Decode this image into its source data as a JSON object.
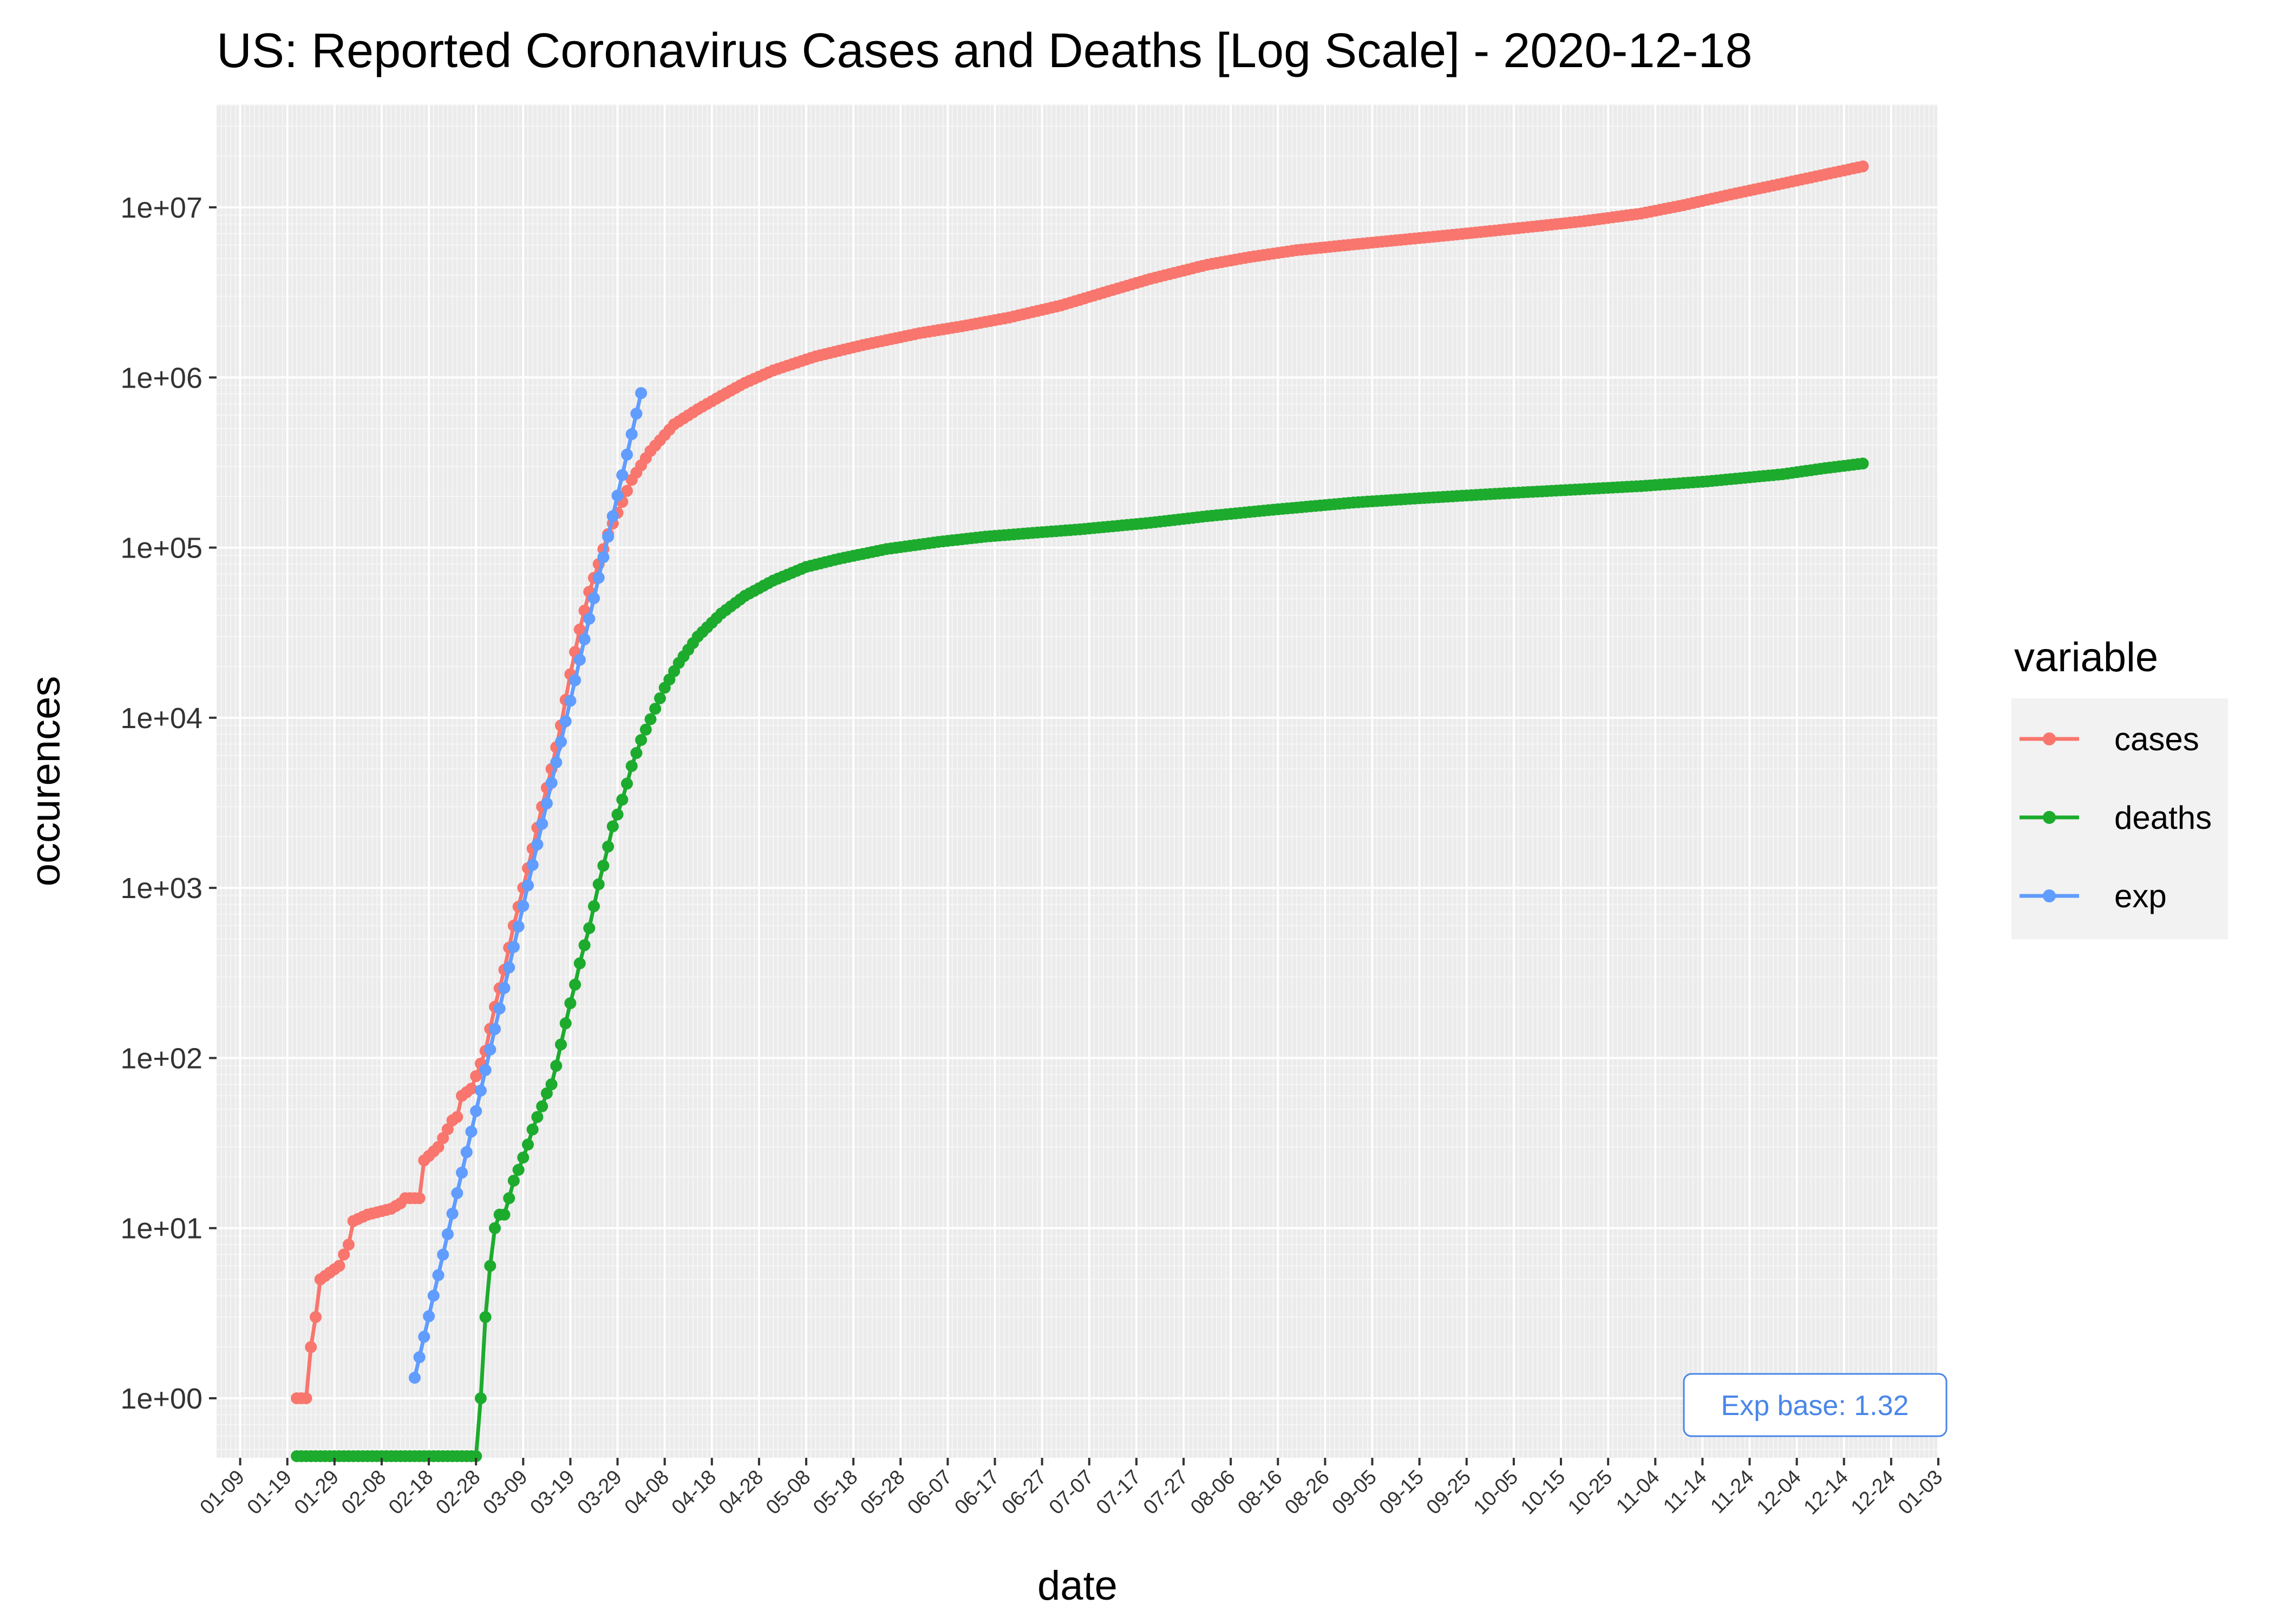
{
  "chart_data": {
    "type": "line",
    "title": "US: Reported Coronavirus Cases and Deaths [Log Scale] - 2020-12-18",
    "xlabel": "date",
    "ylabel": "occurences",
    "y_scale": "log10",
    "grid": true,
    "legend": {
      "title": "variable",
      "position": "right"
    },
    "y_ticks": [
      {
        "value": 1,
        "label": "1e+00"
      },
      {
        "value": 10,
        "label": "1e+01"
      },
      {
        "value": 100,
        "label": "1e+02"
      },
      {
        "value": 1000,
        "label": "1e+03"
      },
      {
        "value": 10000,
        "label": "1e+04"
      },
      {
        "value": 100000,
        "label": "1e+05"
      },
      {
        "value": 1000000,
        "label": "1e+06"
      },
      {
        "value": 10000000,
        "label": "1e+07"
      }
    ],
    "x_ticks": [
      {
        "date": "2020-01-09",
        "label": "01-09"
      },
      {
        "date": "2020-01-19",
        "label": "01-19"
      },
      {
        "date": "2020-01-29",
        "label": "01-29"
      },
      {
        "date": "2020-02-08",
        "label": "02-08"
      },
      {
        "date": "2020-02-18",
        "label": "02-18"
      },
      {
        "date": "2020-02-28",
        "label": "02-28"
      },
      {
        "date": "2020-03-09",
        "label": "03-09"
      },
      {
        "date": "2020-03-19",
        "label": "03-19"
      },
      {
        "date": "2020-03-29",
        "label": "03-29"
      },
      {
        "date": "2020-04-08",
        "label": "04-08"
      },
      {
        "date": "2020-04-18",
        "label": "04-18"
      },
      {
        "date": "2020-04-28",
        "label": "04-28"
      },
      {
        "date": "2020-05-08",
        "label": "05-08"
      },
      {
        "date": "2020-05-18",
        "label": "05-18"
      },
      {
        "date": "2020-05-28",
        "label": "05-28"
      },
      {
        "date": "2020-06-07",
        "label": "06-07"
      },
      {
        "date": "2020-06-17",
        "label": "06-17"
      },
      {
        "date": "2020-06-27",
        "label": "06-27"
      },
      {
        "date": "2020-07-07",
        "label": "07-07"
      },
      {
        "date": "2020-07-17",
        "label": "07-17"
      },
      {
        "date": "2020-07-27",
        "label": "07-27"
      },
      {
        "date": "2020-08-06",
        "label": "08-06"
      },
      {
        "date": "2020-08-16",
        "label": "08-16"
      },
      {
        "date": "2020-08-26",
        "label": "08-26"
      },
      {
        "date": "2020-09-05",
        "label": "09-05"
      },
      {
        "date": "2020-09-15",
        "label": "09-15"
      },
      {
        "date": "2020-09-25",
        "label": "09-25"
      },
      {
        "date": "2020-10-05",
        "label": "10-05"
      },
      {
        "date": "2020-10-15",
        "label": "10-15"
      },
      {
        "date": "2020-10-25",
        "label": "10-25"
      },
      {
        "date": "2020-11-04",
        "label": "11-04"
      },
      {
        "date": "2020-11-14",
        "label": "11-14"
      },
      {
        "date": "2020-11-24",
        "label": "11-24"
      },
      {
        "date": "2020-12-04",
        "label": "12-04"
      },
      {
        "date": "2020-12-14",
        "label": "12-14"
      },
      {
        "date": "2020-12-24",
        "label": "12-24"
      },
      {
        "date": "2021-01-03",
        "label": "01-03"
      }
    ],
    "series": [
      {
        "name": "cases",
        "color": "#f8766d",
        "points": [
          [
            "2020-01-21",
            1
          ],
          [
            "2020-01-23",
            1
          ],
          [
            "2020-01-24",
            2
          ],
          [
            "2020-01-25",
            3
          ],
          [
            "2020-01-26",
            5
          ],
          [
            "2020-01-30",
            6
          ],
          [
            "2020-01-31",
            7
          ],
          [
            "2020-02-01",
            8
          ],
          [
            "2020-02-02",
            11
          ],
          [
            "2020-02-05",
            12
          ],
          [
            "2020-02-10",
            13
          ],
          [
            "2020-02-12",
            14
          ],
          [
            "2020-02-13",
            15
          ],
          [
            "2020-02-16",
            15
          ],
          [
            "2020-02-17",
            25
          ],
          [
            "2020-02-20",
            30
          ],
          [
            "2020-02-23",
            43
          ],
          [
            "2020-02-24",
            45
          ],
          [
            "2020-02-25",
            60
          ],
          [
            "2020-02-27",
            66
          ],
          [
            "2020-03-01",
            110
          ],
          [
            "2020-03-03",
            200
          ],
          [
            "2020-03-05",
            330
          ],
          [
            "2020-03-07",
            600
          ],
          [
            "2020-03-09",
            1000
          ],
          [
            "2020-03-11",
            1700
          ],
          [
            "2020-03-13",
            3000
          ],
          [
            "2020-03-15",
            5000
          ],
          [
            "2020-03-17",
            9000
          ],
          [
            "2020-03-19",
            18000
          ],
          [
            "2020-03-21",
            33000
          ],
          [
            "2020-03-23",
            55000
          ],
          [
            "2020-03-25",
            80000
          ],
          [
            "2020-03-27",
            120000
          ],
          [
            "2020-03-29",
            160000
          ],
          [
            "2020-04-01",
            250000
          ],
          [
            "2020-04-05",
            370000
          ],
          [
            "2020-04-10",
            530000
          ],
          [
            "2020-04-15",
            650000
          ],
          [
            "2020-04-20",
            780000
          ],
          [
            "2020-04-25",
            930000
          ],
          [
            "2020-05-01",
            1100000
          ],
          [
            "2020-05-10",
            1330000
          ],
          [
            "2020-05-20",
            1550000
          ],
          [
            "2020-06-01",
            1820000
          ],
          [
            "2020-06-10",
            2000000
          ],
          [
            "2020-06-20",
            2250000
          ],
          [
            "2020-07-01",
            2650000
          ],
          [
            "2020-07-10",
            3150000
          ],
          [
            "2020-07-20",
            3800000
          ],
          [
            "2020-08-01",
            4600000
          ],
          [
            "2020-08-10",
            5100000
          ],
          [
            "2020-08-20",
            5600000
          ],
          [
            "2020-09-01",
            6050000
          ],
          [
            "2020-09-10",
            6400000
          ],
          [
            "2020-09-20",
            6800000
          ],
          [
            "2020-10-01",
            7300000
          ],
          [
            "2020-10-10",
            7750000
          ],
          [
            "2020-10-20",
            8300000
          ],
          [
            "2020-11-01",
            9200000
          ],
          [
            "2020-11-10",
            10300000
          ],
          [
            "2020-11-20",
            11900000
          ],
          [
            "2020-12-01",
            13800000
          ],
          [
            "2020-12-10",
            15600000
          ],
          [
            "2020-12-18",
            17400000
          ]
        ]
      },
      {
        "name": "deaths",
        "color": "#1dab2e",
        "points": [
          [
            "2020-01-21",
            0
          ],
          [
            "2020-02-28",
            0
          ],
          [
            "2020-02-29",
            1
          ],
          [
            "2020-03-01",
            3
          ],
          [
            "2020-03-02",
            6
          ],
          [
            "2020-03-03",
            10
          ],
          [
            "2020-03-04",
            12
          ],
          [
            "2020-03-05",
            12
          ],
          [
            "2020-03-06",
            15
          ],
          [
            "2020-03-07",
            19
          ],
          [
            "2020-03-08",
            22
          ],
          [
            "2020-03-09",
            26
          ],
          [
            "2020-03-10",
            31
          ],
          [
            "2020-03-11",
            38
          ],
          [
            "2020-03-12",
            45
          ],
          [
            "2020-03-13",
            52
          ],
          [
            "2020-03-14",
            62
          ],
          [
            "2020-03-15",
            70
          ],
          [
            "2020-03-16",
            90
          ],
          [
            "2020-03-17",
            120
          ],
          [
            "2020-03-18",
            160
          ],
          [
            "2020-03-19",
            210
          ],
          [
            "2020-03-20",
            270
          ],
          [
            "2020-03-21",
            360
          ],
          [
            "2020-03-22",
            460
          ],
          [
            "2020-03-23",
            580
          ],
          [
            "2020-03-24",
            780
          ],
          [
            "2020-03-25",
            1050
          ],
          [
            "2020-03-26",
            1350
          ],
          [
            "2020-03-27",
            1750
          ],
          [
            "2020-03-28",
            2300
          ],
          [
            "2020-03-29",
            2700
          ],
          [
            "2020-03-30",
            3300
          ],
          [
            "2020-03-31",
            4100
          ],
          [
            "2020-04-01",
            5200
          ],
          [
            "2020-04-03",
            7400
          ],
          [
            "2020-04-05",
            9800
          ],
          [
            "2020-04-08",
            15000
          ],
          [
            "2020-04-11",
            21000
          ],
          [
            "2020-04-15",
            30000
          ],
          [
            "2020-04-20",
            41000
          ],
          [
            "2020-04-25",
            52000
          ],
          [
            "2020-05-01",
            64000
          ],
          [
            "2020-05-08",
            77000
          ],
          [
            "2020-05-15",
            86000
          ],
          [
            "2020-05-25",
            98000
          ],
          [
            "2020-06-05",
            108000
          ],
          [
            "2020-06-15",
            116000
          ],
          [
            "2020-06-25",
            122000
          ],
          [
            "2020-07-05",
            128000
          ],
          [
            "2020-07-20",
            140000
          ],
          [
            "2020-08-01",
            153000
          ],
          [
            "2020-08-15",
            167000
          ],
          [
            "2020-09-01",
            184000
          ],
          [
            "2020-09-15",
            195000
          ],
          [
            "2020-10-01",
            207000
          ],
          [
            "2020-10-15",
            217000
          ],
          [
            "2020-11-01",
            230000
          ],
          [
            "2020-11-15",
            245000
          ],
          [
            "2020-12-01",
            270000
          ],
          [
            "2020-12-10",
            293000
          ],
          [
            "2020-12-18",
            312000
          ]
        ]
      },
      {
        "name": "exp",
        "color": "#619cff",
        "base": 1.32,
        "start_date": "2020-02-15",
        "end_date": "2020-04-03",
        "start_value": 1.32
      }
    ],
    "annotation": {
      "text": "Exp base: 1.32",
      "color": "#4a86e8"
    }
  }
}
